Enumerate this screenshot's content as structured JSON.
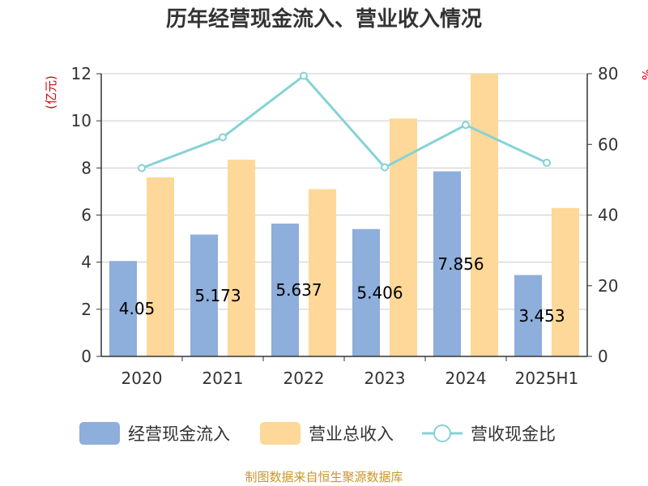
{
  "colors": {
    "bar_cash": "#8eaedb",
    "bar_revenue": "#fed899",
    "line_ratio": "#86d2d6",
    "grid": "#cccccc",
    "axis": "#333333",
    "unit_text": "#d9000a",
    "source_text": "#c8962c"
  },
  "chart_data": {
    "type": "bar",
    "title": "历年经营现金流入、营业收入情况",
    "left_unit": "(亿元)",
    "right_unit": "%",
    "categories": [
      "2020",
      "2021",
      "2022",
      "2023",
      "2024",
      "2025H1"
    ],
    "ylim_left": [
      0,
      12
    ],
    "yticks_left": [
      0,
      2,
      4,
      6,
      8,
      10,
      12
    ],
    "ylim_right": [
      0,
      80
    ],
    "yticks_right": [
      0,
      20,
      40,
      60,
      80
    ],
    "grid": true,
    "legend_position": "bottom",
    "series": [
      {
        "name": "经营现金流入",
        "type": "bar",
        "axis": "left",
        "values": [
          4.05,
          5.173,
          5.637,
          5.406,
          7.856,
          3.453
        ],
        "labels": [
          "4.05",
          "5.173",
          "5.637",
          "5.406",
          "7.856",
          "3.453"
        ]
      },
      {
        "name": "营业总收入",
        "type": "bar",
        "axis": "left",
        "values": [
          7.6,
          8.35,
          7.1,
          10.1,
          12.0,
          6.3
        ]
      },
      {
        "name": "营收现金比",
        "type": "line",
        "axis": "right",
        "values": [
          53.3,
          62.0,
          79.4,
          53.5,
          65.5,
          54.8
        ]
      }
    ],
    "source": "制图数据来自恒生聚源数据库"
  }
}
